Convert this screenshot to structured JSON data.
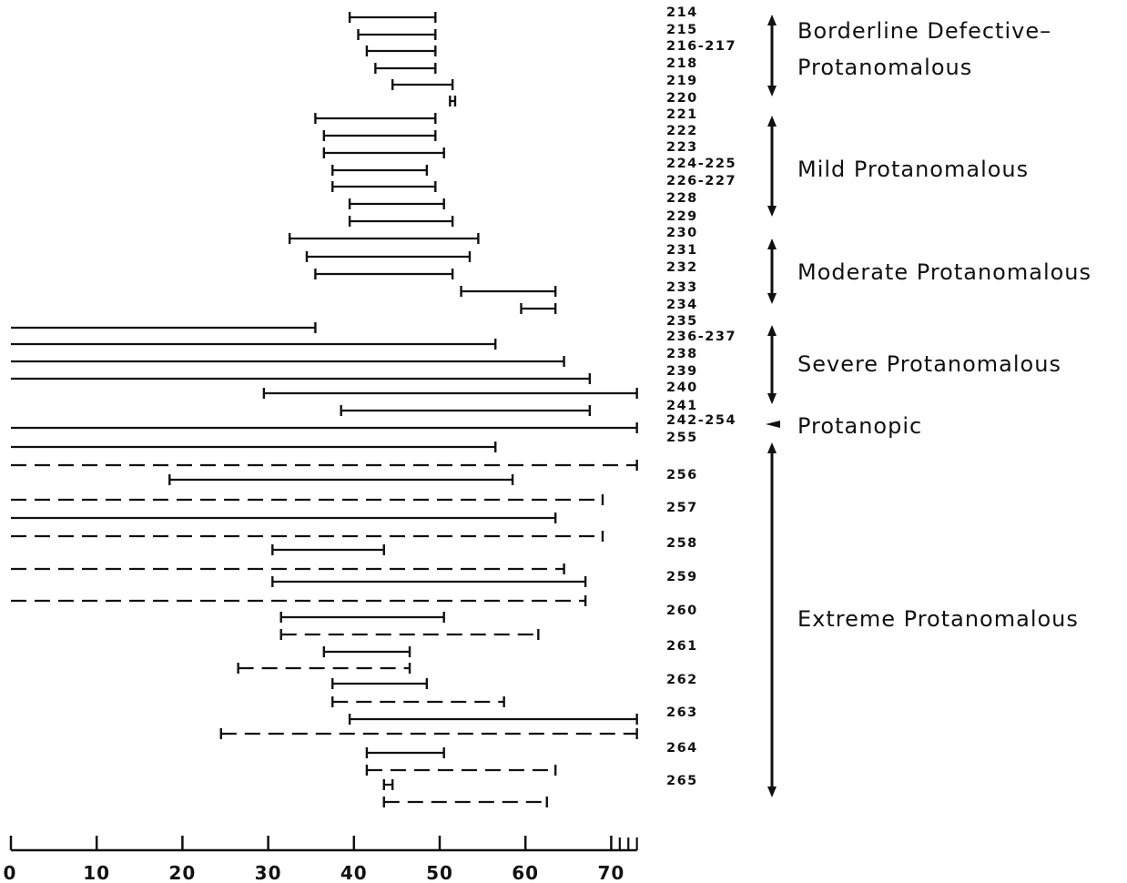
{
  "chart_data": {
    "type": "range",
    "title": "",
    "xlabel": "",
    "ylabel": "",
    "xlim": [
      0,
      73
    ],
    "x_ticks": [
      "0",
      "10",
      "20",
      "30",
      "40",
      "50",
      "60",
      "70"
    ],
    "x_ticks_values": [
      0,
      10,
      20,
      30,
      40,
      50,
      60,
      70
    ],
    "x_minor_ticks": [
      71,
      72,
      73
    ],
    "grid": false,
    "legend": "none",
    "line_styles": {
      "solid": "solid",
      "dashed": "dashed"
    },
    "rows": [
      {
        "label": "214",
        "bars": [
          {
            "start": 39.5,
            "end": 49.5,
            "style": "solid"
          }
        ]
      },
      {
        "label": "215",
        "bars": [
          {
            "start": 40.5,
            "end": 49.5,
            "style": "solid"
          }
        ]
      },
      {
        "label": "216-217",
        "bars": [
          {
            "start": 41.5,
            "end": 49.5,
            "style": "solid"
          }
        ]
      },
      {
        "label": "218",
        "bars": [
          {
            "start": 42.5,
            "end": 49.5,
            "style": "solid"
          }
        ]
      },
      {
        "label": "219",
        "bars": [
          {
            "start": 44.5,
            "end": 51.5,
            "style": "solid"
          }
        ]
      },
      {
        "label": "220",
        "bars": [
          {
            "start": 51.2,
            "end": 51.8,
            "style": "solid"
          }
        ]
      },
      {
        "label": "221",
        "bars": [
          {
            "start": 35.5,
            "end": 49.5,
            "style": "solid"
          }
        ]
      },
      {
        "label": "222",
        "bars": [
          {
            "start": 36.5,
            "end": 49.5,
            "style": "solid"
          }
        ]
      },
      {
        "label": "223",
        "bars": [
          {
            "start": 36.5,
            "end": 50.5,
            "style": "solid"
          }
        ]
      },
      {
        "label": "224-225",
        "bars": [
          {
            "start": 37.5,
            "end": 48.5,
            "style": "solid"
          }
        ]
      },
      {
        "label": "226-227",
        "bars": [
          {
            "start": 37.5,
            "end": 49.5,
            "style": "solid"
          }
        ]
      },
      {
        "label": "228",
        "bars": [
          {
            "start": 39.5,
            "end": 50.5,
            "style": "solid"
          }
        ]
      },
      {
        "label": "229",
        "bars": [
          {
            "start": 39.5,
            "end": 51.5,
            "style": "solid"
          }
        ]
      },
      {
        "label": "230",
        "bars": [
          {
            "start": 32.5,
            "end": 54.5,
            "style": "solid"
          }
        ]
      },
      {
        "label": "231",
        "bars": [
          {
            "start": 34.5,
            "end": 53.5,
            "style": "solid"
          }
        ]
      },
      {
        "label": "232",
        "bars": [
          {
            "start": 35.5,
            "end": 51.5,
            "style": "solid"
          }
        ]
      },
      {
        "label": "233",
        "bars": [
          {
            "start": 52.5,
            "end": 63.5,
            "style": "solid"
          }
        ]
      },
      {
        "label": "234",
        "bars": [
          {
            "start": 59.5,
            "end": 63.5,
            "style": "solid"
          }
        ]
      },
      {
        "label": "235",
        "bars": [
          {
            "start": 0,
            "end": 35.5,
            "style": "solid"
          }
        ]
      },
      {
        "label": "236-237",
        "bars": [
          {
            "start": 0,
            "end": 56.5,
            "style": "solid"
          }
        ]
      },
      {
        "label": "238",
        "bars": [
          {
            "start": 0,
            "end": 64.5,
            "style": "solid"
          }
        ]
      },
      {
        "label": "239",
        "bars": [
          {
            "start": 0,
            "end": 67.5,
            "style": "solid"
          }
        ]
      },
      {
        "label": "240",
        "bars": [
          {
            "start": 29.5,
            "end": 73,
            "style": "solid"
          }
        ]
      },
      {
        "label": "241",
        "bars": [
          {
            "start": 38.5,
            "end": 67.5,
            "style": "solid"
          }
        ]
      },
      {
        "label": "242-254",
        "bars": [
          {
            "start": 0,
            "end": 73,
            "style": "solid"
          }
        ]
      },
      {
        "label": "255",
        "bars": [
          {
            "start": 0,
            "end": 56.5,
            "style": "solid"
          },
          {
            "start": 0,
            "end": 73,
            "style": "dashed"
          }
        ]
      },
      {
        "label": "256",
        "bars": [
          {
            "start": 18.5,
            "end": 58.5,
            "style": "solid"
          },
          {
            "start": 0,
            "end": 69,
            "style": "dashed"
          }
        ]
      },
      {
        "label": "257",
        "bars": [
          {
            "start": 0,
            "end": 63.5,
            "style": "solid"
          },
          {
            "start": 0,
            "end": 69,
            "style": "dashed"
          }
        ]
      },
      {
        "label": "258",
        "bars": [
          {
            "start": 30.5,
            "end": 43.5,
            "style": "solid"
          },
          {
            "start": 0,
            "end": 64.5,
            "style": "dashed"
          }
        ]
      },
      {
        "label": "259",
        "bars": [
          {
            "start": 30.5,
            "end": 67,
            "style": "solid"
          },
          {
            "start": 0,
            "end": 67,
            "style": "dashed"
          }
        ]
      },
      {
        "label": "260",
        "bars": [
          {
            "start": 31.5,
            "end": 50.5,
            "style": "solid"
          },
          {
            "start": 31.5,
            "end": 61.5,
            "style": "dashed"
          }
        ]
      },
      {
        "label": "261",
        "bars": [
          {
            "start": 36.5,
            "end": 46.5,
            "style": "solid"
          },
          {
            "start": 26.5,
            "end": 46.5,
            "style": "dashed"
          }
        ]
      },
      {
        "label": "262",
        "bars": [
          {
            "start": 37.5,
            "end": 48.5,
            "style": "solid"
          },
          {
            "start": 37.5,
            "end": 57.5,
            "style": "dashed"
          }
        ]
      },
      {
        "label": "263",
        "bars": [
          {
            "start": 39.5,
            "end": 73,
            "style": "solid"
          },
          {
            "start": 24.5,
            "end": 73,
            "style": "dashed"
          }
        ]
      },
      {
        "label": "264",
        "bars": [
          {
            "start": 41.5,
            "end": 50.5,
            "style": "solid"
          },
          {
            "start": 41.5,
            "end": 63.5,
            "style": "dashed"
          }
        ]
      },
      {
        "label": "265",
        "bars": [
          {
            "start": 43.5,
            "end": 44.5,
            "style": "solid"
          },
          {
            "start": 43.5,
            "end": 62.5,
            "style": "dashed"
          }
        ]
      }
    ],
    "categories": [
      {
        "name": "Borderline Defective–",
        "name_line2": "Protanomalous",
        "from_row": "214",
        "to_row": "220",
        "marker": "double-arrow"
      },
      {
        "name": "Mild Protanomalous",
        "from_row": "221",
        "to_row": "229",
        "marker": "double-arrow"
      },
      {
        "name": "Moderate Protanomalous",
        "from_row": "230",
        "to_row": "234",
        "marker": "double-arrow"
      },
      {
        "name": "Severe Protanomalous",
        "from_row": "235",
        "to_row": "241",
        "marker": "double-arrow"
      },
      {
        "name": "Protanopic",
        "from_row": "242-254",
        "to_row": "242-254",
        "marker": "single-arrow"
      },
      {
        "name": "Extreme Protanomalous",
        "from_row": "255",
        "to_row": "265",
        "marker": "double-arrow"
      }
    ]
  }
}
